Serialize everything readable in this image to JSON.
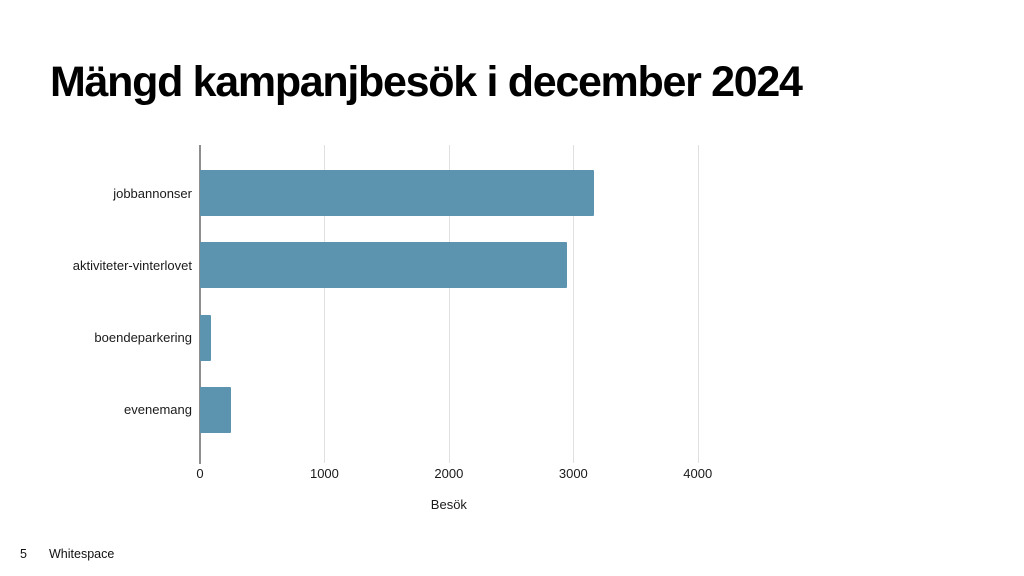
{
  "slide": {
    "title": "Mängd kampanjbesök i december 2024",
    "page_number": "5",
    "footer_text": "Whitespace",
    "background_color": "#ffffff"
  },
  "chart_data": {
    "type": "bar",
    "orientation": "horizontal",
    "title": "Mängd kampanjbesök i december 2024",
    "categories": [
      "jobbannonser",
      "aktiviteter-vinterlovet",
      "boendeparkering",
      "evenemang"
    ],
    "values": [
      3170,
      2950,
      90,
      250
    ],
    "xlabel": "Besök",
    "ylabel": "",
    "x_ticks": [
      0,
      1000,
      2000,
      3000,
      4000
    ],
    "xlim": [
      0,
      4500
    ],
    "grid": true,
    "legend": false,
    "bar_color": "#5c93af",
    "gridline_color": "#e0e0e0",
    "axis_line_color": "#8e8e8e",
    "text_color": "#1a1a1a"
  }
}
